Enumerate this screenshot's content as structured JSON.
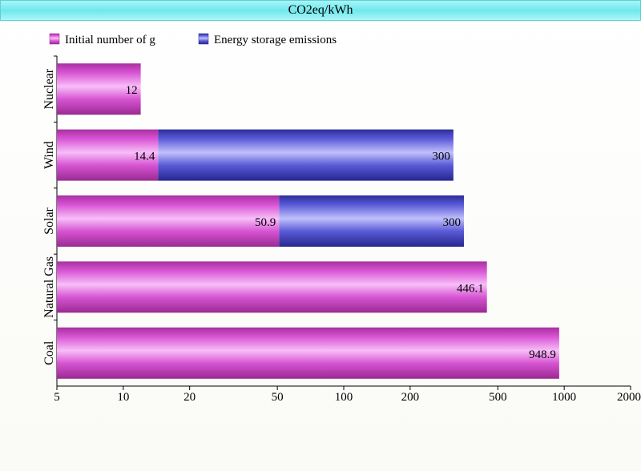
{
  "chart_data": {
    "type": "bar",
    "orientation": "horizontal",
    "stacked": true,
    "title": "CO2eq/kWh",
    "x_scale": "log",
    "xlim": [
      5,
      2000
    ],
    "x_ticks": [
      "5",
      "10",
      "20",
      "50",
      "100",
      "200",
      "500",
      "1000",
      "2000"
    ],
    "x_tick_values": [
      5,
      10,
      20,
      50,
      100,
      200,
      500,
      1000,
      2000
    ],
    "categories": [
      "Nuclear",
      "Wind",
      "Solar",
      "Natural Gas",
      "Coal"
    ],
    "series": [
      {
        "name": "Initial number of g",
        "values": [
          12,
          14.4,
          50.9,
          446.1,
          948.9
        ],
        "labels": [
          "12",
          "14.4",
          "50.9",
          "446.1",
          "948.9"
        ]
      },
      {
        "name": "Energy storage emissions",
        "values": [
          0,
          300,
          300,
          0,
          0
        ],
        "labels": [
          "",
          "300",
          "300",
          "",
          ""
        ]
      }
    ],
    "colors": {
      "series_0": "#d64fd4",
      "series_0_light": "#f6b8f6",
      "series_1": "#5555d6",
      "series_1_light": "#bcbcfa"
    },
    "legend_position": "top-left",
    "grid": false
  }
}
